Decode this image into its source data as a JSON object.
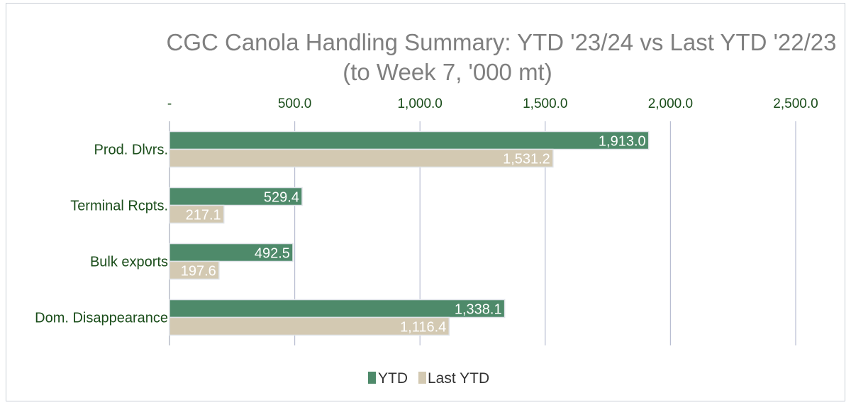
{
  "chart_data": {
    "type": "bar",
    "orientation": "horizontal",
    "title": "CGC Canola Handling Summary: YTD '23/24 vs Last YTD '22/23",
    "subtitle": "(to Week  7,  '000 mt)",
    "categories": [
      "Prod. Dlvrs.",
      "Terminal Rcpts.",
      "Bulk exports",
      "Dom. Disappearance"
    ],
    "series": [
      {
        "name": "YTD",
        "values": [
          1913.0,
          529.4,
          492.5,
          1338.1
        ],
        "labels": [
          "1,913.0",
          "529.4",
          "492.5",
          "1,338.1"
        ],
        "color": "#4e8a6a"
      },
      {
        "name": "Last YTD",
        "values": [
          1531.2,
          217.1,
          197.6,
          1116.4
        ],
        "labels": [
          "1,531.2",
          "217.1",
          "197.6",
          "1,116.4"
        ],
        "color": "#d3c9b2"
      }
    ],
    "xlim": [
      0,
      2500
    ],
    "x_ticks": [
      0,
      500,
      1000,
      1500,
      2000,
      2500
    ],
    "x_tick_labels": [
      "-",
      "500.0",
      "1,000.0",
      "1,500.0",
      "2,000.0",
      "2,500.0"
    ],
    "x_axis_position": "top",
    "grid": true,
    "legend_position": "bottom"
  }
}
